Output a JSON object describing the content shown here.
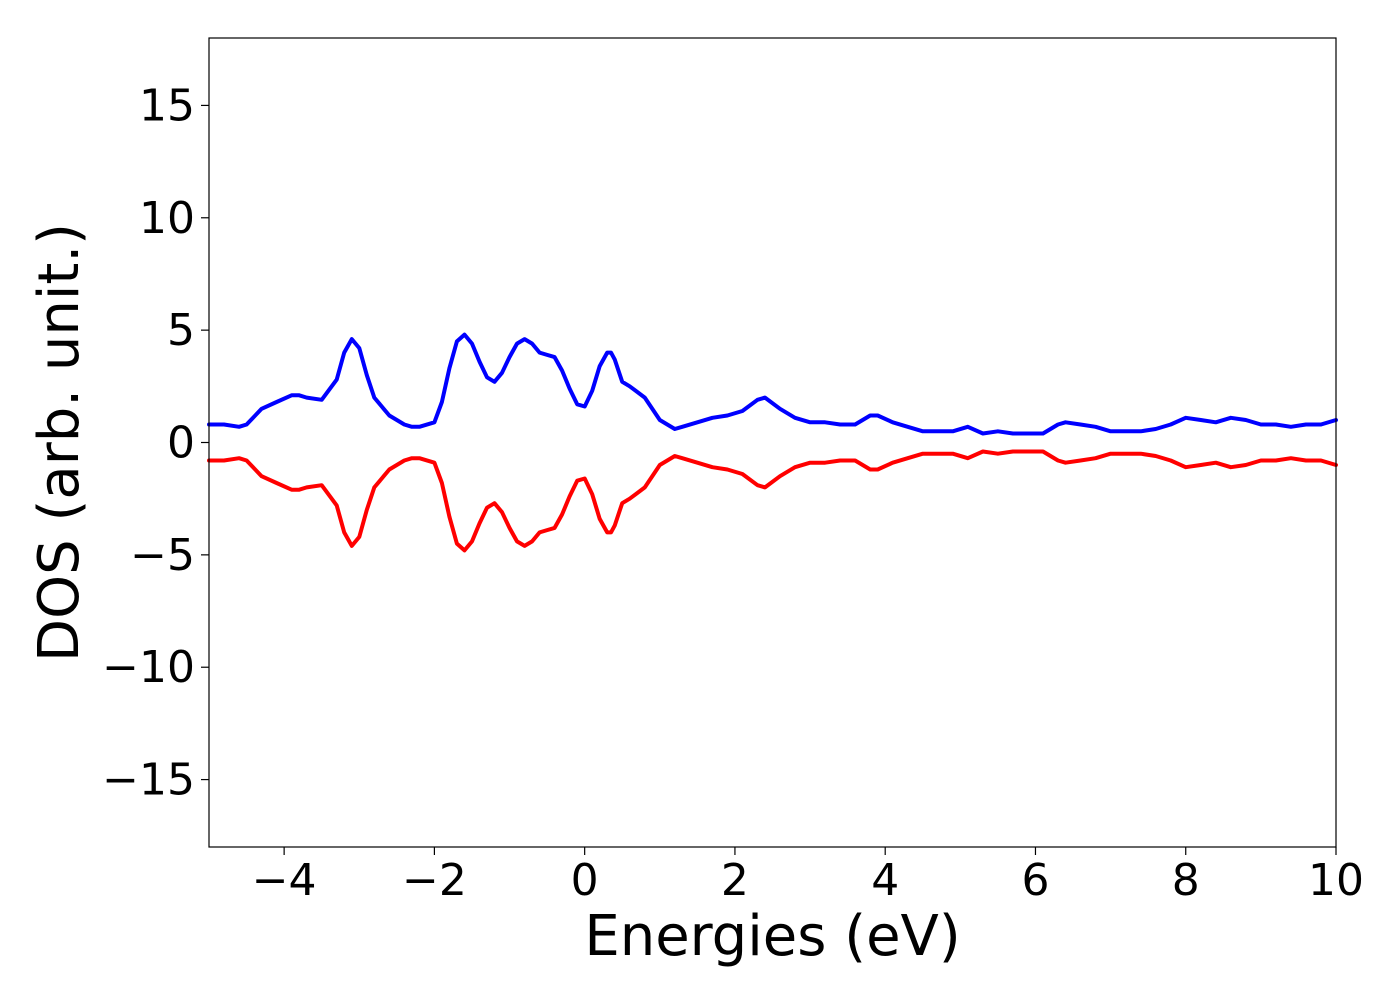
{
  "chart_data": {
    "type": "line",
    "xlabel": "Energies (eV)",
    "ylabel": "DOS (arb. unit.)",
    "xlim": [
      -5,
      10
    ],
    "ylim": [
      -18,
      18
    ],
    "grid": false,
    "xticks": [
      -4,
      -2,
      0,
      2,
      4,
      6,
      8,
      10
    ],
    "xtick_labels": [
      "−4",
      "−2",
      "0",
      "2",
      "4",
      "6",
      "8",
      "10"
    ],
    "yticks": [
      15,
      10,
      5,
      0,
      -5,
      -10,
      -15
    ],
    "ytick_labels": [
      "15",
      "10",
      "5",
      "0",
      "−5",
      "−10",
      "−15"
    ],
    "series": [
      {
        "color": "#0000ff",
        "x": [
          -5.0,
          -4.8,
          -4.6,
          -4.5,
          -4.3,
          -4.1,
          -3.9,
          -3.8,
          -3.7,
          -3.5,
          -3.3,
          -3.2,
          -3.1,
          -3.0,
          -2.9,
          -2.8,
          -2.6,
          -2.4,
          -2.3,
          -2.2,
          -2.0,
          -1.9,
          -1.8,
          -1.7,
          -1.6,
          -1.5,
          -1.4,
          -1.3,
          -1.2,
          -1.1,
          -1.0,
          -0.9,
          -0.8,
          -0.7,
          -0.6,
          -0.5,
          -0.4,
          -0.3,
          -0.2,
          -0.1,
          0.0,
          0.1,
          0.2,
          0.3,
          0.35,
          0.4,
          0.5,
          0.6,
          0.8,
          1.0,
          1.2,
          1.3,
          1.5,
          1.7,
          1.9,
          2.1,
          2.3,
          2.4,
          2.6,
          2.8,
          3.0,
          3.2,
          3.4,
          3.6,
          3.8,
          3.9,
          4.1,
          4.3,
          4.5,
          4.7,
          4.9,
          5.1,
          5.3,
          5.5,
          5.7,
          5.9,
          6.1,
          6.3,
          6.4,
          6.6,
          6.8,
          7.0,
          7.2,
          7.4,
          7.6,
          7.8,
          8.0,
          8.2,
          8.4,
          8.6,
          8.8,
          9.0,
          9.2,
          9.4,
          9.6,
          9.8,
          10.0
        ],
        "values": [
          0.8,
          0.8,
          0.7,
          0.8,
          1.5,
          1.8,
          2.1,
          2.1,
          2.0,
          1.9,
          2.8,
          4.0,
          4.6,
          4.2,
          3.0,
          2.0,
          1.2,
          0.8,
          0.7,
          0.7,
          0.9,
          1.8,
          3.3,
          4.5,
          4.8,
          4.4,
          3.6,
          2.9,
          2.7,
          3.1,
          3.8,
          4.4,
          4.6,
          4.4,
          4.0,
          3.9,
          3.8,
          3.2,
          2.4,
          1.7,
          1.6,
          2.3,
          3.4,
          4.0,
          4.0,
          3.7,
          2.7,
          2.5,
          2.0,
          1.0,
          0.6,
          0.7,
          0.9,
          1.1,
          1.2,
          1.4,
          1.9,
          2.0,
          1.5,
          1.1,
          0.9,
          0.9,
          0.8,
          0.8,
          1.2,
          1.2,
          0.9,
          0.7,
          0.5,
          0.5,
          0.5,
          0.7,
          0.4,
          0.5,
          0.4,
          0.4,
          0.4,
          0.8,
          0.9,
          0.8,
          0.7,
          0.5,
          0.5,
          0.5,
          0.6,
          0.8,
          1.1,
          1.0,
          0.9,
          1.1,
          1.0,
          0.8,
          0.8,
          0.7,
          0.8,
          0.8,
          1.0
        ]
      },
      {
        "color": "#ff0000",
        "x": [
          -5.0,
          -4.8,
          -4.6,
          -4.5,
          -4.3,
          -4.1,
          -3.9,
          -3.8,
          -3.7,
          -3.5,
          -3.3,
          -3.2,
          -3.1,
          -3.0,
          -2.9,
          -2.8,
          -2.6,
          -2.4,
          -2.3,
          -2.2,
          -2.0,
          -1.9,
          -1.8,
          -1.7,
          -1.6,
          -1.5,
          -1.4,
          -1.3,
          -1.2,
          -1.1,
          -1.0,
          -0.9,
          -0.8,
          -0.7,
          -0.6,
          -0.5,
          -0.4,
          -0.3,
          -0.2,
          -0.1,
          0.0,
          0.1,
          0.2,
          0.3,
          0.35,
          0.4,
          0.5,
          0.6,
          0.8,
          1.0,
          1.2,
          1.3,
          1.5,
          1.7,
          1.9,
          2.1,
          2.3,
          2.4,
          2.6,
          2.8,
          3.0,
          3.2,
          3.4,
          3.6,
          3.8,
          3.9,
          4.1,
          4.3,
          4.5,
          4.7,
          4.9,
          5.1,
          5.3,
          5.5,
          5.7,
          5.9,
          6.1,
          6.3,
          6.4,
          6.6,
          6.8,
          7.0,
          7.2,
          7.4,
          7.6,
          7.8,
          8.0,
          8.2,
          8.4,
          8.6,
          8.8,
          9.0,
          9.2,
          9.4,
          9.6,
          9.8,
          10.0
        ],
        "values": [
          -0.8,
          -0.8,
          -0.7,
          -0.8,
          -1.5,
          -1.8,
          -2.1,
          -2.1,
          -2.0,
          -1.9,
          -2.8,
          -4.0,
          -4.6,
          -4.2,
          -3.0,
          -2.0,
          -1.2,
          -0.8,
          -0.7,
          -0.7,
          -0.9,
          -1.8,
          -3.3,
          -4.5,
          -4.8,
          -4.4,
          -3.6,
          -2.9,
          -2.7,
          -3.1,
          -3.8,
          -4.4,
          -4.6,
          -4.4,
          -4.0,
          -3.9,
          -3.8,
          -3.2,
          -2.4,
          -1.7,
          -1.6,
          -2.3,
          -3.4,
          -4.0,
          -4.0,
          -3.7,
          -2.7,
          -2.5,
          -2.0,
          -1.0,
          -0.6,
          -0.7,
          -0.9,
          -1.1,
          -1.2,
          -1.4,
          -1.9,
          -2.0,
          -1.5,
          -1.1,
          -0.9,
          -0.9,
          -0.8,
          -0.8,
          -1.2,
          -1.2,
          -0.9,
          -0.7,
          -0.5,
          -0.5,
          -0.5,
          -0.7,
          -0.4,
          -0.5,
          -0.4,
          -0.4,
          -0.4,
          -0.8,
          -0.9,
          -0.8,
          -0.7,
          -0.5,
          -0.5,
          -0.5,
          -0.6,
          -0.8,
          -1.1,
          -1.0,
          -0.9,
          -1.1,
          -1.0,
          -0.8,
          -0.8,
          -0.7,
          -0.8,
          -0.8,
          -1.0
        ]
      }
    ]
  }
}
